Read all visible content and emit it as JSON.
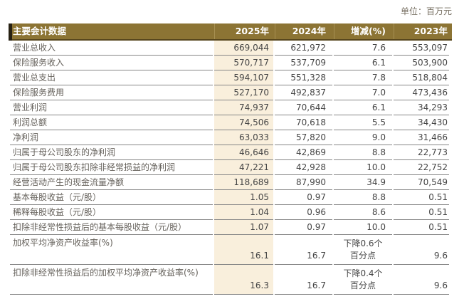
{
  "unit_label": "单位：百万元",
  "colors": {
    "header_bg": "#8c7434",
    "header_border": "#57461d",
    "header_text": "#ffffff",
    "highlight_column_bg": "#f9efdc",
    "row_line": "#868686",
    "label_text": "#66625c",
    "number_text": "#454545"
  },
  "table": {
    "headers": {
      "metric": "主要会计数据",
      "y2025": "2025年",
      "y2024": "2024年",
      "change": "增减(%)",
      "y2023": "2023年"
    },
    "rows": [
      {
        "label": "营业总收入",
        "y2025": "669,044",
        "y2024": "621,972",
        "change": "7.6",
        "y2023": "553,097"
      },
      {
        "label": "保险服务收入",
        "y2025": "570,717",
        "y2024": "537,709",
        "change": "6.1",
        "y2023": "503,900"
      },
      {
        "label": "营业总支出",
        "y2025": "594,107",
        "y2024": "551,328",
        "change": "7.8",
        "y2023": "518,804"
      },
      {
        "label": "保险服务费用",
        "y2025": "527,170",
        "y2024": "492,837",
        "change": "7.0",
        "y2023": "473,436"
      },
      {
        "label": "营业利润",
        "y2025": "74,937",
        "y2024": "70,644",
        "change": "6.1",
        "y2023": "34,293"
      },
      {
        "label": "利润总额",
        "y2025": "74,506",
        "y2024": "70,618",
        "change": "5.5",
        "y2023": "34,430"
      },
      {
        "label": "净利润",
        "y2025": "63,033",
        "y2024": "57,820",
        "change": "9.0",
        "y2023": "31,466"
      },
      {
        "label": "归属于母公司股东的净利润",
        "y2025": "46,646",
        "y2024": "42,869",
        "change": "8.8",
        "y2023": "22,773"
      },
      {
        "label": "归属于母公司股东扣除非经常损益的净利润",
        "y2025": "47,221",
        "y2024": "42,928",
        "change": "10.0",
        "y2023": "22,752"
      },
      {
        "label": "经营活动产生的现金流量净额",
        "y2025": "118,689",
        "y2024": "87,990",
        "change": "34.9",
        "y2023": "70,549"
      },
      {
        "label": "基本每股收益（元/股）",
        "y2025": "1.05",
        "y2024": "0.97",
        "change": "8.8",
        "y2023": "0.51"
      },
      {
        "label": "稀释每股收益（元/股）",
        "y2025": "1.04",
        "y2024": "0.96",
        "change": "8.6",
        "y2023": "0.51"
      },
      {
        "label": "扣除非经常性损益后的基本每股收益（元/股）",
        "y2025": "1.07",
        "y2024": "0.97",
        "change": "10.0",
        "y2023": "0.51"
      },
      {
        "label": "加权平均净资产收益率(%)",
        "y2025": "16.1",
        "y2024": "16.7",
        "change": "下降0.6个\n百分点",
        "y2023": "9.6"
      },
      {
        "label": "扣除非经常性损益后的加权平均净资产收益率(%)",
        "y2025": "16.3",
        "y2024": "16.7",
        "change": "下降0.4个\n百分点",
        "y2023": "9.6"
      }
    ]
  }
}
